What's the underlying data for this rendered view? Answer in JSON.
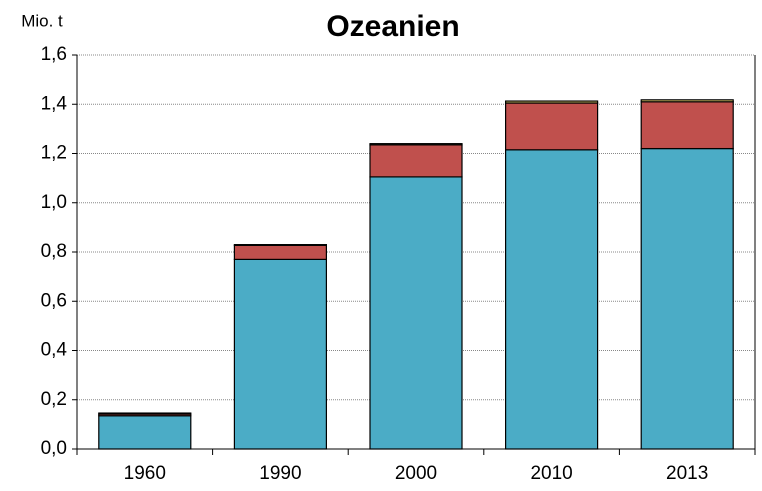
{
  "chart_data": {
    "type": "stacked_bar",
    "title": "Ozeanien",
    "y_label": "Mio. t",
    "categories": [
      "1960",
      "1990",
      "2000",
      "2010",
      "2013"
    ],
    "series": [
      {
        "color": "#4bacc6",
        "values": [
          0.135,
          0.77,
          1.105,
          1.215,
          1.22
        ]
      },
      {
        "color": "#c0504d",
        "values": [
          0.007,
          0.057,
          0.13,
          0.19,
          0.19
        ]
      },
      {
        "color": "#d8c86a",
        "values": [
          0.004,
          0.003,
          0.005,
          0.008,
          0.008
        ]
      }
    ],
    "ylim": [
      0,
      1.6
    ],
    "yticks": [
      {
        "value": 0,
        "label": "0,0"
      },
      {
        "value": 0.2,
        "label": "0,2"
      },
      {
        "value": 0.4,
        "label": "0,4"
      },
      {
        "value": 0.6,
        "label": "0,6"
      },
      {
        "value": 0.8,
        "label": "0,8"
      },
      {
        "value": 1.0,
        "label": "1,0"
      },
      {
        "value": 1.2,
        "label": "1,2"
      },
      {
        "value": 1.4,
        "label": "1,4"
      },
      {
        "value": 1.6,
        "label": "1,6"
      }
    ],
    "grid": true
  }
}
